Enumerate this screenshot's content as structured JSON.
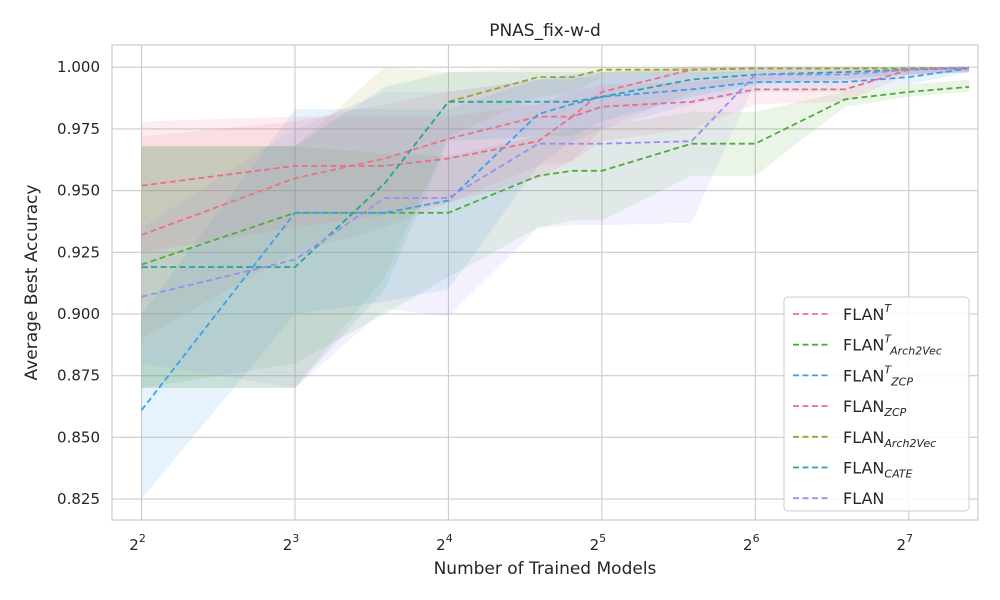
{
  "chart_data": {
    "type": "line",
    "title": "PNAS_fix-w-d",
    "xlabel": "Number of Trained Models",
    "ylabel": "Average Best Accuracy",
    "x_scale": "log2",
    "xlim": [
      3.5,
      175
    ],
    "ylim": [
      0.8165,
      1.009
    ],
    "x_ticks": [
      4,
      8,
      16,
      32,
      64,
      128
    ],
    "x_tick_labels": [
      {
        "base": "2",
        "exp": "2"
      },
      {
        "base": "2",
        "exp": "3"
      },
      {
        "base": "2",
        "exp": "4"
      },
      {
        "base": "2",
        "exp": "5"
      },
      {
        "base": "2",
        "exp": "6"
      },
      {
        "base": "2",
        "exp": "7"
      }
    ],
    "y_ticks": [
      0.825,
      0.85,
      0.875,
      0.9,
      0.925,
      0.95,
      0.975,
      1.0
    ],
    "y_tick_labels": [
      "0.825",
      "0.850",
      "0.875",
      "0.900",
      "0.925",
      "0.950",
      "0.975",
      "1.000"
    ],
    "grid": true,
    "legend_position": "bottom-right",
    "x": [
      4,
      8,
      12,
      16,
      24,
      28,
      32,
      48,
      64,
      96,
      128,
      168
    ],
    "series": [
      {
        "legend": {
          "base": "FLAN",
          "sup": "T",
          "sub": ""
        },
        "color": "#f0707f",
        "values": [
          0.932,
          0.955,
          0.963,
          0.971,
          0.98,
          0.98,
          0.99,
          0.999,
          0.9995,
          0.9995,
          0.9995,
          0.9998
        ],
        "lower": [
          0.89,
          0.925,
          0.935,
          0.945,
          0.96,
          0.962,
          0.975,
          0.99,
          0.995,
          0.996,
          0.997,
          0.998
        ],
        "upper": [
          0.972,
          0.978,
          0.985,
          0.99,
          0.995,
          0.995,
          0.998,
          1.0,
          1.0,
          1.0,
          1.0,
          1.0
        ]
      },
      {
        "legend": {
          "base": "FLAN",
          "sup": "T",
          "sub": "Arch2Vec"
        },
        "color": "#4fac3b",
        "values": [
          0.92,
          0.941,
          0.941,
          0.941,
          0.956,
          0.958,
          0.958,
          0.969,
          0.969,
          0.987,
          0.99,
          0.992
        ],
        "lower": [
          0.87,
          0.88,
          0.9,
          0.915,
          0.935,
          0.938,
          0.938,
          0.956,
          0.956,
          0.984,
          0.988,
          0.99
        ],
        "upper": [
          0.968,
          0.968,
          0.965,
          0.964,
          0.972,
          0.975,
          0.976,
          0.982,
          0.982,
          0.99,
          0.993,
          0.995
        ]
      },
      {
        "legend": {
          "base": "FLAN",
          "sup": "T",
          "sub": "ZCP"
        },
        "color": "#3ba0e8",
        "values": [
          0.861,
          0.941,
          0.941,
          0.946,
          0.981,
          0.985,
          0.988,
          0.991,
          0.994,
          0.994,
          0.996,
          0.9995
        ],
        "lower": [
          0.825,
          0.9,
          0.905,
          0.91,
          0.96,
          0.97,
          0.975,
          0.985,
          0.99,
          0.99,
          0.993,
          0.998
        ],
        "upper": [
          0.9,
          0.983,
          0.983,
          0.983,
          0.995,
          0.997,
          0.998,
          0.998,
          0.998,
          0.998,
          0.999,
          1.0
        ]
      },
      {
        "legend": {
          "base": "FLAN",
          "sup": "",
          "sub": "ZCP"
        },
        "color": "#ec6b86",
        "values": [
          0.952,
          0.96,
          0.96,
          0.963,
          0.97,
          0.98,
          0.984,
          0.986,
          0.991,
          0.991,
          0.999,
          0.9995
        ],
        "lower": [
          0.925,
          0.935,
          0.94,
          0.945,
          0.955,
          0.962,
          0.97,
          0.975,
          0.985,
          0.986,
          0.997,
          0.998
        ],
        "upper": [
          0.978,
          0.98,
          0.98,
          0.98,
          0.985,
          0.99,
          0.993,
          0.994,
          0.996,
          0.996,
          1.0,
          1.0
        ]
      },
      {
        "legend": {
          "base": "FLAN",
          "sup": "",
          "sub": "Arch2Vec"
        },
        "color": "#9ea032",
        "values": [
          0.919,
          0.919,
          0.953,
          0.986,
          0.996,
          0.996,
          0.999,
          0.999,
          0.9995,
          0.9995,
          0.9995,
          0.9998
        ],
        "lower": [
          0.87,
          0.87,
          0.915,
          0.972,
          0.988,
          0.99,
          0.996,
          0.997,
          0.998,
          0.998,
          0.999,
          0.999
        ],
        "upper": [
          0.968,
          0.968,
          1.0,
          0.998,
          1.0,
          1.0,
          1.0,
          1.0,
          1.0,
          1.0,
          1.0,
          1.0
        ]
      },
      {
        "legend": {
          "base": "FLAN",
          "sup": "",
          "sub": "CATE"
        },
        "color": "#2aa5a5",
        "values": [
          0.919,
          0.919,
          0.953,
          0.986,
          0.986,
          0.986,
          0.988,
          0.995,
          0.997,
          0.998,
          0.999,
          0.9998
        ],
        "lower": [
          0.87,
          0.87,
          0.91,
          0.97,
          0.972,
          0.972,
          0.978,
          0.988,
          0.993,
          0.995,
          0.997,
          0.998
        ],
        "upper": [
          0.968,
          0.968,
          0.992,
          0.998,
          0.998,
          0.998,
          0.998,
          1.0,
          1.0,
          1.0,
          1.0,
          1.0
        ]
      },
      {
        "legend": {
          "base": "FLAN",
          "sup": "",
          "sub": ""
        },
        "color": "#9b8ef0",
        "values": [
          0.907,
          0.922,
          0.947,
          0.947,
          0.969,
          0.969,
          0.969,
          0.97,
          0.997,
          0.997,
          0.999,
          0.9998
        ],
        "lower": [
          0.88,
          0.87,
          0.902,
          0.899,
          0.935,
          0.936,
          0.936,
          0.937,
          0.994,
          0.994,
          0.997,
          0.998
        ],
        "upper": [
          0.935,
          0.975,
          0.99,
          0.99,
          0.995,
          0.996,
          0.996,
          0.997,
          0.999,
          0.999,
          1.0,
          1.0
        ]
      }
    ]
  }
}
